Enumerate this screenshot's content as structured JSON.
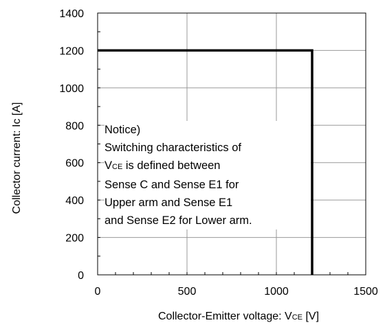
{
  "chart_data": {
    "type": "line",
    "xlabel": {
      "main": "Collector-Emitter voltage: V",
      "sub": "CE",
      "unit": " [V]"
    },
    "ylabel": "Collector current: Ic [A]",
    "xlim": [
      0,
      1500
    ],
    "ylim": [
      0,
      1400
    ],
    "x_ticks": [
      0,
      500,
      1000,
      1500
    ],
    "y_ticks": [
      0,
      200,
      400,
      600,
      800,
      1000,
      1200,
      1400
    ],
    "x_minor_step": 100,
    "y_minor_step": 100,
    "grid": true,
    "series": [
      {
        "x": [
          0,
          1200,
          1200
        ],
        "y": [
          1200,
          1200,
          0
        ],
        "color": "#000000"
      }
    ],
    "annotation": {
      "line1": "Notice)",
      "line2": "Switching characteristics of",
      "line3_pre": "V",
      "line3_sub": "CE",
      "line3_post": " is defined between",
      "line4": "Sense C and Sense E1 for",
      "line5": "Upper arm and Sense E1",
      "line6": "and Sense E2 for Lower arm."
    }
  }
}
